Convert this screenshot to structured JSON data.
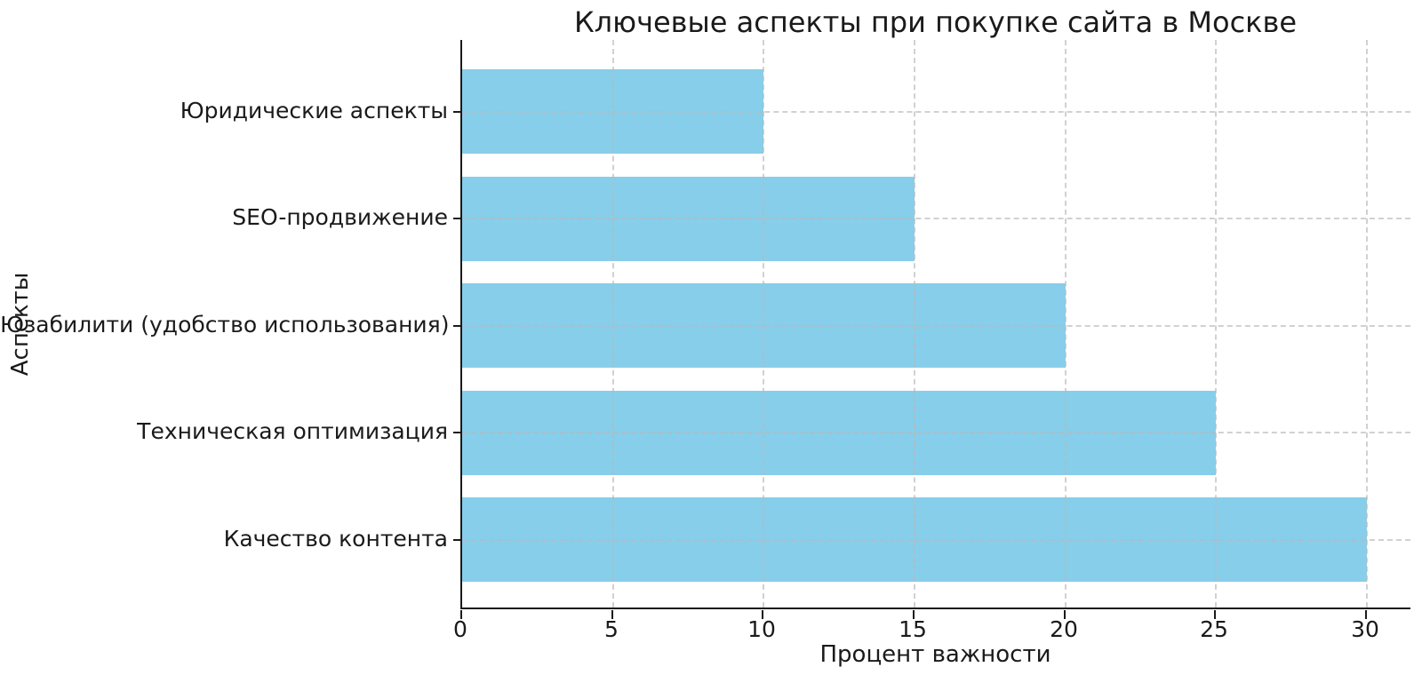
{
  "chart_data": {
    "type": "bar",
    "orientation": "horizontal",
    "title": "Ключевые аспекты при покупке сайта в Москве",
    "xlabel": "Процент важности",
    "ylabel": "Аспекты",
    "categories": [
      "Юридические аспекты",
      "SEO-продвижение",
      "Юзабилити (удобство использования)",
      "Техническая оптимизация",
      "Качество контента"
    ],
    "values": [
      10,
      15,
      20,
      25,
      30
    ],
    "category_order": "top-to-bottom",
    "xticks": [
      0,
      5,
      10,
      15,
      20,
      25,
      30
    ],
    "xlim": [
      0,
      31.5
    ],
    "bar_color": "#87CEEB",
    "grid": true,
    "gridline_style": "dashed",
    "grid_above_bars": true,
    "background_color": "#ffffff",
    "text_color": "#1a1a1a",
    "legend": "none"
  }
}
